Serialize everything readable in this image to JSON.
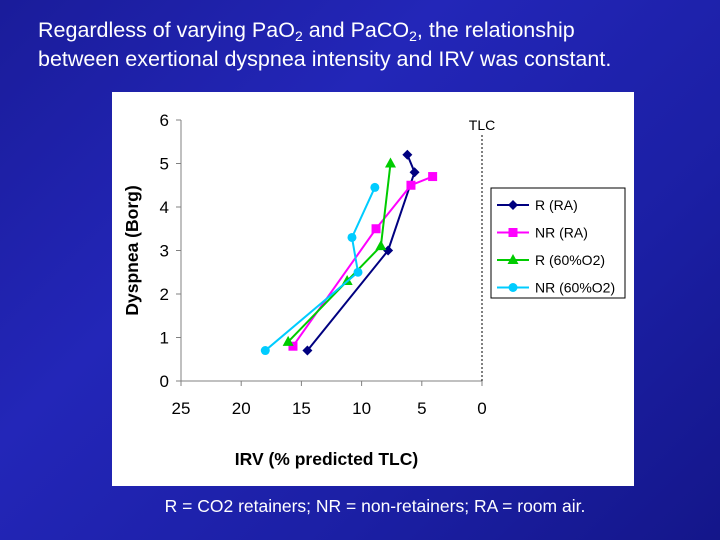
{
  "title": {
    "pre1": "Regardless of varying Pa",
    "o": "O",
    "sub1": "2",
    "mid": " and Pa",
    "co": "CO",
    "sub2": "2",
    "post1": ", the relationship",
    "line2": "between exertional dyspnea intensity and IRV was constant."
  },
  "footnote": "R = CO2 retainers; NR = non-retainers; RA = room air.",
  "chart_data": {
    "type": "line",
    "xlabel": "IRV (% predicted TLC)",
    "ylabel": "Dyspnea (Borg)",
    "xlim": [
      25,
      0
    ],
    "ylim": [
      0,
      6
    ],
    "x_reversed": true,
    "xticks": [
      25,
      20,
      15,
      10,
      5,
      0
    ],
    "yticks": [
      0,
      1,
      2,
      3,
      4,
      5,
      6
    ],
    "grid": false,
    "legend_position": "right",
    "reference_line": {
      "x": 0,
      "label": "TLC",
      "style": "dashed"
    },
    "series": [
      {
        "name": "R (RA)",
        "color": "#000080",
        "marker": "diamond",
        "x": [
          14.5,
          7.8,
          5.6,
          6.2
        ],
        "y": [
          0.7,
          3.0,
          4.8,
          5.2
        ]
      },
      {
        "name": "NR (RA)",
        "color": "#ff00ff",
        "marker": "square",
        "x": [
          15.7,
          8.8,
          5.9,
          4.1
        ],
        "y": [
          0.8,
          3.5,
          4.5,
          4.7
        ]
      },
      {
        "name": "R (60%O2)",
        "color": "#00cc00",
        "marker": "triangle",
        "x": [
          16.1,
          11.2,
          8.4,
          7.6
        ],
        "y": [
          0.9,
          2.3,
          3.1,
          5.0
        ]
      },
      {
        "name": "NR (60%O2)",
        "color": "#00ccff",
        "marker": "circle",
        "x": [
          18.0,
          10.3,
          10.8,
          8.9
        ],
        "y": [
          0.7,
          2.5,
          3.3,
          4.45
        ]
      }
    ]
  }
}
